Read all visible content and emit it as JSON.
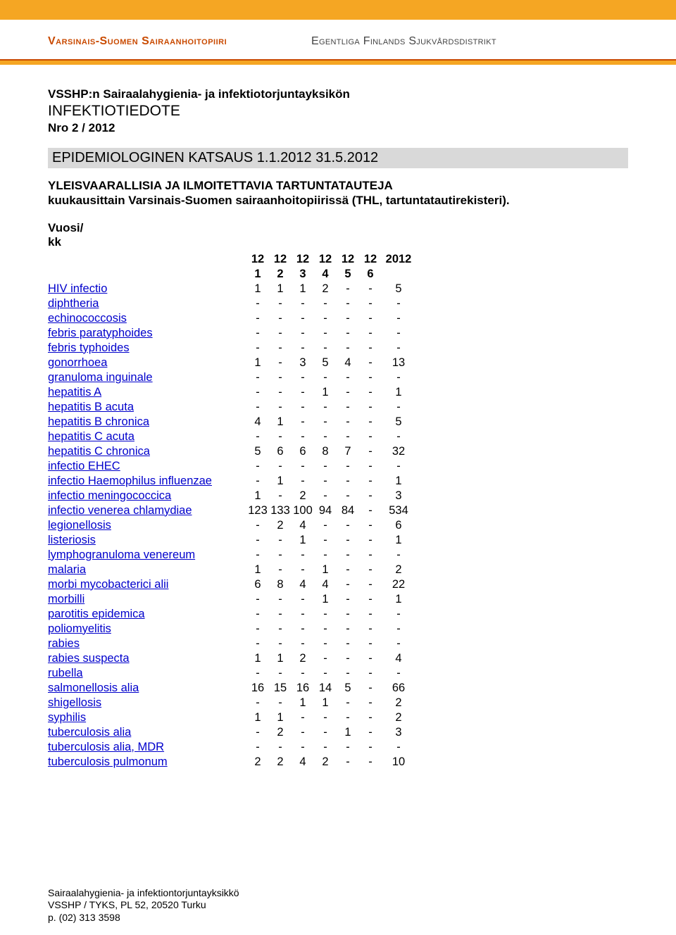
{
  "header": {
    "org_left": "Varsinais-Suomen Sairaanhoitopiiri",
    "org_right": "Egentliga Finlands Sjukvårdsdistrikt",
    "colors": {
      "accent": "#f5a623",
      "rule": "#c94a00",
      "link": "#0000cc"
    }
  },
  "title": {
    "line1": "VSSHP:n Sairaalahygienia- ja infektiotorjuntayksikön",
    "line2": "INFEKTIOTIEDOTE",
    "line3": "Nro 2 / 2012"
  },
  "section_heading": "EPIDEMIOLOGINEN KATSAUS 1.1.2012   31.5.2012",
  "intro": {
    "l1": "YLEISVAARALLISIA JA ILMOITETTAVIA TARTUNTATAUTEJA",
    "l2": "kuukausittain Varsinais-Suomen sairaanhoitopiirissä (THL, tartuntatautirekisteri)."
  },
  "year_label": "Vuosi/\nkk",
  "table": {
    "header_top": [
      "12",
      "12",
      "12",
      "12",
      "12",
      "12",
      "2012"
    ],
    "header_bottom": [
      "1",
      "2",
      "3",
      "4",
      "5",
      "6",
      ""
    ],
    "rows": [
      {
        "label": "HIV infectio",
        "v": [
          "1",
          "1",
          "1",
          "2",
          "-",
          "-",
          "5"
        ]
      },
      {
        "label": "diphtheria",
        "v": [
          "-",
          "-",
          "-",
          "-",
          "-",
          "-",
          "-"
        ]
      },
      {
        "label": "echinococcosis",
        "v": [
          "-",
          "-",
          "-",
          "-",
          "-",
          "-",
          "-"
        ]
      },
      {
        "label": "febris paratyphoides",
        "v": [
          "-",
          "-",
          "-",
          "-",
          "-",
          "-",
          "-"
        ]
      },
      {
        "label": "febris typhoides",
        "v": [
          "-",
          "-",
          "-",
          "-",
          "-",
          "-",
          "-"
        ]
      },
      {
        "label": "gonorrhoea",
        "v": [
          "1",
          "-",
          "3",
          "5",
          "4",
          "-",
          "13"
        ]
      },
      {
        "label": "granuloma inguinale",
        "v": [
          "-",
          "-",
          "-",
          "-",
          "-",
          "-",
          "-"
        ]
      },
      {
        "label": "hepatitis A",
        "v": [
          "-",
          "-",
          "-",
          "1",
          "-",
          "-",
          "1"
        ]
      },
      {
        "label": "hepatitis B acuta",
        "v": [
          "-",
          "-",
          "-",
          "-",
          "-",
          "-",
          "-"
        ]
      },
      {
        "label": "hepatitis B chronica",
        "v": [
          "4",
          "1",
          "-",
          "-",
          "-",
          "-",
          "5"
        ]
      },
      {
        "label": "hepatitis C acuta",
        "v": [
          "-",
          "-",
          "-",
          "-",
          "-",
          "-",
          "-"
        ]
      },
      {
        "label": "hepatitis C chronica",
        "v": [
          "5",
          "6",
          "6",
          "8",
          "7",
          "-",
          "32"
        ]
      },
      {
        "label": "infectio EHEC",
        "v": [
          "-",
          "-",
          "-",
          "-",
          "-",
          "-",
          "-"
        ]
      },
      {
        "label": "infectio Haemophilus influenzae",
        "v": [
          "-",
          "1",
          "-",
          "-",
          "-",
          "-",
          "1"
        ]
      },
      {
        "label": "infectio meningococcica",
        "v": [
          "1",
          "-",
          "2",
          "-",
          "-",
          "-",
          "3"
        ]
      },
      {
        "label": "infectio venerea chlamydiae",
        "v": [
          "123",
          "133",
          "100",
          "94",
          "84",
          "-",
          "534"
        ]
      },
      {
        "label": "legionellosis",
        "v": [
          "-",
          "2",
          "4",
          "-",
          "-",
          "-",
          "6"
        ]
      },
      {
        "label": "listeriosis",
        "v": [
          "-",
          "-",
          "1",
          "-",
          "-",
          "-",
          "1"
        ]
      },
      {
        "label": "lymphogranuloma venereum",
        "v": [
          "-",
          "-",
          "-",
          "-",
          "-",
          "-",
          "-"
        ]
      },
      {
        "label": "malaria",
        "v": [
          "1",
          "-",
          "-",
          "1",
          "-",
          "-",
          "2"
        ]
      },
      {
        "label": "morbi mycobacterici alii",
        "v": [
          "6",
          "8",
          "4",
          "4",
          "-",
          "-",
          "22"
        ]
      },
      {
        "label": "morbilli",
        "v": [
          "-",
          "-",
          "-",
          "1",
          "-",
          "-",
          "1"
        ]
      },
      {
        "label": "parotitis epidemica",
        "v": [
          "-",
          "-",
          "-",
          "-",
          "-",
          "-",
          "-"
        ]
      },
      {
        "label": "poliomyelitis",
        "v": [
          "-",
          "-",
          "-",
          "-",
          "-",
          "-",
          "-"
        ]
      },
      {
        "label": "rabies",
        "v": [
          "-",
          "-",
          "-",
          "-",
          "-",
          "-",
          "-"
        ]
      },
      {
        "label": "rabies suspecta",
        "v": [
          "1",
          "1",
          "2",
          "-",
          "-",
          "-",
          "4"
        ]
      },
      {
        "label": "rubella",
        "v": [
          "-",
          "-",
          "-",
          "-",
          "-",
          "-",
          "-"
        ]
      },
      {
        "label": "salmonellosis alia",
        "v": [
          "16",
          "15",
          "16",
          "14",
          "5",
          "-",
          "66"
        ]
      },
      {
        "label": "shigellosis",
        "v": [
          "-",
          "-",
          "1",
          "1",
          "-",
          "-",
          "2"
        ]
      },
      {
        "label": "syphilis",
        "v": [
          "1",
          "1",
          "-",
          "-",
          "-",
          "-",
          "2"
        ]
      },
      {
        "label": "tuberculosis alia",
        "v": [
          "-",
          "2",
          "-",
          "-",
          "1",
          "-",
          "3"
        ]
      },
      {
        "label": "tuberculosis alia, MDR",
        "v": [
          "-",
          "-",
          "-",
          "-",
          "-",
          "-",
          "-"
        ]
      },
      {
        "label": "tuberculosis pulmonum",
        "v": [
          "2",
          "2",
          "4",
          "2",
          "-",
          "-",
          "10"
        ]
      }
    ]
  },
  "footer": {
    "l1": "Sairaalahygienia- ja infektiontorjuntayksikkö",
    "l2": "VSSHP / TYKS, PL 52, 20520 Turku",
    "l3": "p. (02) 313 3598"
  }
}
